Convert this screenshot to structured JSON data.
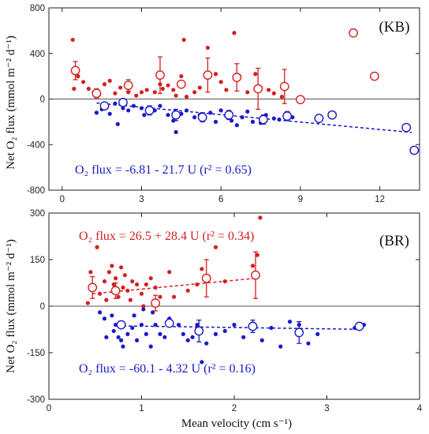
{
  "colors": {
    "red": "#d42020",
    "blue": "#1a1ac8",
    "axis": "#222222",
    "zero": "#555555"
  },
  "y_axis_label": "Net O₂ flux (mmol m⁻² d⁻¹)",
  "x_axis_label": "Mean velocity (cm s⁻¹)",
  "chart_data": [
    {
      "type": "scatter",
      "panel_label": "(KB)",
      "xlim": [
        -0.5,
        13.5
      ],
      "ylim": [
        -800,
        800
      ],
      "xticks": [
        0,
        3,
        6,
        9,
        12
      ],
      "yticks": [
        -800,
        -400,
        0,
        400,
        800
      ],
      "xtick_labels": [
        "0",
        "3",
        "6",
        "9",
        "12"
      ],
      "ytick_labels": [
        "-800",
        "-400",
        "0",
        "400",
        "800"
      ],
      "grid": false,
      "equations": [
        {
          "text": "O₂ flux = -6.81 - 21.7 U (r² = 0.65)",
          "color": "blue"
        }
      ],
      "series": [
        {
          "color": "red",
          "style": "small-filled",
          "points": [
            [
              0.4,
              520
            ],
            [
              0.45,
              90
            ],
            [
              0.6,
              200
            ],
            [
              0.8,
              150
            ],
            [
              1.0,
              90
            ],
            [
              1.2,
              60
            ],
            [
              1.4,
              40
            ],
            [
              1.6,
              130
            ],
            [
              1.8,
              160
            ],
            [
              2.0,
              50
            ],
            [
              2.2,
              100
            ],
            [
              2.5,
              60
            ],
            [
              2.8,
              30
            ],
            [
              3.0,
              60
            ],
            [
              3.2,
              80
            ],
            [
              3.5,
              60
            ],
            [
              3.7,
              130
            ],
            [
              3.8,
              90
            ],
            [
              4.0,
              120
            ],
            [
              4.2,
              80
            ],
            [
              4.3,
              30
            ],
            [
              4.5,
              200
            ],
            [
              4.6,
              520
            ],
            [
              4.7,
              20
            ],
            [
              5.0,
              60
            ],
            [
              5.2,
              100
            ],
            [
              5.5,
              450
            ],
            [
              5.8,
              220
            ],
            [
              6.0,
              150
            ],
            [
              6.2,
              80
            ],
            [
              6.5,
              580
            ],
            [
              6.7,
              200
            ],
            [
              7.0,
              60
            ],
            [
              7.3,
              220
            ],
            [
              7.5,
              100
            ],
            [
              7.8,
              80
            ],
            [
              8.0,
              50
            ],
            [
              8.3,
              20
            ]
          ]
        },
        {
          "color": "blue",
          "style": "small-filled",
          "points": [
            [
              1.3,
              -120
            ],
            [
              1.5,
              -90
            ],
            [
              1.7,
              -60
            ],
            [
              1.8,
              -130
            ],
            [
              2.0,
              -40
            ],
            [
              2.1,
              -220
            ],
            [
              2.3,
              -80
            ],
            [
              2.5,
              -100
            ],
            [
              2.7,
              -60
            ],
            [
              3.0,
              -80
            ],
            [
              3.1,
              -140
            ],
            [
              3.3,
              -120
            ],
            [
              3.5,
              -100
            ],
            [
              3.7,
              -60
            ],
            [
              4.0,
              -140
            ],
            [
              4.2,
              -190
            ],
            [
              4.3,
              -290
            ],
            [
              4.5,
              -130
            ],
            [
              4.7,
              -100
            ],
            [
              5.0,
              -160
            ],
            [
              5.2,
              -140
            ],
            [
              5.3,
              -180
            ],
            [
              5.6,
              -120
            ],
            [
              5.8,
              -200
            ],
            [
              6.0,
              -100
            ],
            [
              6.2,
              -150
            ],
            [
              6.4,
              -190
            ],
            [
              6.6,
              -230
            ],
            [
              6.8,
              -160
            ],
            [
              7.0,
              -110
            ],
            [
              7.2,
              -200
            ],
            [
              7.5,
              -210
            ],
            [
              7.7,
              -140
            ],
            [
              8.0,
              -170
            ],
            [
              8.2,
              -180
            ],
            [
              8.5,
              -150
            ],
            [
              8.7,
              -160
            ]
          ]
        },
        {
          "color": "red",
          "style": "open-mean",
          "points": [
            [
              0.5,
              250
            ],
            [
              1.3,
              50
            ],
            [
              2.5,
              120
            ],
            [
              3.7,
              210
            ],
            [
              4.5,
              130
            ],
            [
              5.5,
              210
            ],
            [
              6.6,
              190
            ],
            [
              7.4,
              90
            ],
            [
              8.4,
              110
            ],
            [
              9.0,
              -5
            ],
            [
              11.0,
              580
            ],
            [
              11.8,
              200
            ]
          ],
          "errors": [
            80,
            40,
            50,
            160,
            0,
            150,
            120,
            180,
            150,
            0,
            0,
            0
          ]
        },
        {
          "color": "blue",
          "style": "open-mean",
          "points": [
            [
              1.6,
              -60
            ],
            [
              2.3,
              -30
            ],
            [
              3.3,
              -100
            ],
            [
              4.3,
              -140
            ],
            [
              5.3,
              -160
            ],
            [
              6.3,
              -140
            ],
            [
              7.6,
              -180
            ],
            [
              8.5,
              -150
            ],
            [
              9.7,
              -170
            ],
            [
              10.2,
              -140
            ],
            [
              13.0,
              -250
            ],
            [
              13.3,
              -450
            ]
          ],
          "errors": [
            30,
            30,
            40,
            50,
            40,
            40,
            40,
            40,
            0,
            0,
            0,
            0
          ]
        }
      ],
      "fit": {
        "color": "blue",
        "intercept": -6.81,
        "slope": -21.7,
        "x_range": [
          1.3,
          13.2
        ]
      }
    },
    {
      "type": "scatter",
      "panel_label": "(BR)",
      "xlim": [
        0,
        4
      ],
      "ylim": [
        -300,
        300
      ],
      "xticks": [
        0,
        1,
        2,
        3,
        4
      ],
      "yticks": [
        -300,
        -150,
        0,
        150,
        300
      ],
      "xtick_labels": [
        "0",
        "1",
        "2",
        "3",
        "4"
      ],
      "ytick_labels": [
        "-300",
        "-150",
        "0",
        "150",
        "300"
      ],
      "grid": false,
      "equations": [
        {
          "text": "O₂ flux = 26.5 + 28.4 U (r² = 0.34)",
          "color": "red"
        },
        {
          "text": "O₂ flux = -60.1 - 4.32 U (r² = 0.16)",
          "color": "blue"
        }
      ],
      "series": [
        {
          "color": "red",
          "style": "small-filled",
          "points": [
            [
              0.42,
              10
            ],
            [
              0.45,
              110
            ],
            [
              0.5,
              60
            ],
            [
              0.52,
              190
            ],
            [
              0.55,
              40
            ],
            [
              0.6,
              80
            ],
            [
              0.62,
              20
            ],
            [
              0.65,
              110
            ],
            [
              0.68,
              130
            ],
            [
              0.7,
              70
            ],
            [
              0.72,
              90
            ],
            [
              0.75,
              30
            ],
            [
              0.78,
              125
            ],
            [
              0.8,
              60
            ],
            [
              0.82,
              100
            ],
            [
              0.85,
              50
            ],
            [
              0.88,
              20
            ],
            [
              0.9,
              80
            ],
            [
              0.95,
              70
            ],
            [
              1.0,
              40
            ],
            [
              1.02,
              0
            ],
            [
              1.05,
              70
            ],
            [
              1.1,
              90
            ],
            [
              1.15,
              60
            ],
            [
              1.2,
              30
            ],
            [
              1.3,
              110
            ],
            [
              1.35,
              30
            ],
            [
              1.5,
              50
            ],
            [
              1.6,
              70
            ],
            [
              1.65,
              120
            ],
            [
              1.8,
              190
            ],
            [
              1.9,
              80
            ],
            [
              2.2,
              130
            ],
            [
              2.25,
              165
            ],
            [
              2.28,
              285
            ]
          ]
        },
        {
          "color": "blue",
          "style": "small-filled",
          "points": [
            [
              0.55,
              -20
            ],
            [
              0.6,
              -40
            ],
            [
              0.62,
              -100
            ],
            [
              0.68,
              -30
            ],
            [
              0.7,
              -80
            ],
            [
              0.72,
              -60
            ],
            [
              0.75,
              -100
            ],
            [
              0.78,
              -110
            ],
            [
              0.8,
              -130
            ],
            [
              0.85,
              -90
            ],
            [
              0.9,
              -70
            ],
            [
              0.92,
              -30
            ],
            [
              0.95,
              -110
            ],
            [
              1.0,
              -60
            ],
            [
              1.02,
              -10
            ],
            [
              1.05,
              -90
            ],
            [
              1.1,
              -130
            ],
            [
              1.12,
              -20
            ],
            [
              1.15,
              -60
            ],
            [
              1.2,
              -90
            ],
            [
              1.25,
              -100
            ],
            [
              1.3,
              -40
            ],
            [
              1.4,
              -60
            ],
            [
              1.45,
              -90
            ],
            [
              1.5,
              -110
            ],
            [
              1.55,
              -100
            ],
            [
              1.6,
              -60
            ],
            [
              1.65,
              -180
            ],
            [
              1.7,
              -120
            ],
            [
              1.8,
              -90
            ],
            [
              1.9,
              -80
            ],
            [
              2.0,
              -60
            ],
            [
              2.1,
              -100
            ],
            [
              2.2,
              -70
            ],
            [
              2.3,
              -110
            ],
            [
              2.4,
              -70
            ],
            [
              2.5,
              -130
            ],
            [
              2.6,
              -50
            ],
            [
              2.7,
              -60
            ],
            [
              2.8,
              -120
            ],
            [
              2.9,
              -90
            ],
            [
              3.3,
              -70
            ],
            [
              3.4,
              -60
            ]
          ]
        },
        {
          "color": "red",
          "style": "open-mean",
          "points": [
            [
              0.47,
              60
            ],
            [
              0.72,
              50
            ],
            [
              1.15,
              10
            ],
            [
              1.7,
              90
            ],
            [
              2.23,
              100
            ]
          ],
          "errors": [
            35,
            25,
            25,
            60,
            75
          ]
        },
        {
          "color": "blue",
          "style": "open-mean",
          "points": [
            [
              0.78,
              -60
            ],
            [
              1.3,
              -55
            ],
            [
              1.62,
              -80
            ],
            [
              2.2,
              -65
            ],
            [
              2.7,
              -85
            ],
            [
              3.35,
              -65
            ]
          ],
          "errors": [
            0,
            0,
            35,
            20,
            35,
            0
          ]
        }
      ],
      "fits": [
        {
          "color": "red",
          "intercept": 26.5,
          "slope": 28.4,
          "x_range": [
            0.47,
            2.25
          ]
        },
        {
          "color": "blue",
          "intercept": -60.1,
          "slope": -4.32,
          "x_range": [
            0.8,
            3.35
          ]
        }
      ]
    }
  ]
}
